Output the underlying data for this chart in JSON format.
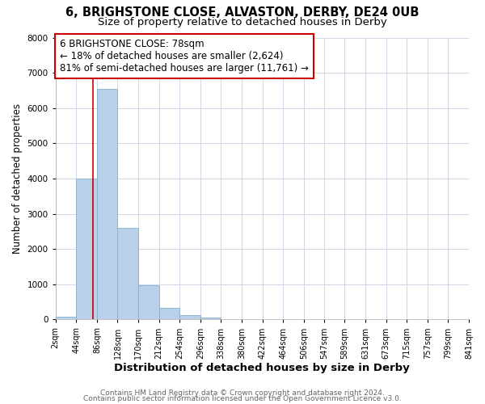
{
  "title_line1": "6, BRIGHSTONE CLOSE, ALVASTON, DERBY, DE24 0UB",
  "title_line2": "Size of property relative to detached houses in Derby",
  "xlabel": "Distribution of detached houses by size in Derby",
  "ylabel": "Number of detached properties",
  "bar_edges": [
    2,
    44,
    86,
    128,
    170,
    212,
    254,
    296,
    338,
    380,
    422,
    464,
    506,
    547,
    589,
    631,
    673,
    715,
    757,
    799,
    841
  ],
  "bar_heights": [
    75,
    4000,
    6550,
    2600,
    975,
    325,
    120,
    50,
    0,
    0,
    0,
    0,
    0,
    0,
    0,
    0,
    0,
    0,
    0,
    0
  ],
  "bar_color": "#b8d0e8",
  "bar_edgecolor": "#88aece",
  "property_line_x": 78,
  "property_line_color": "#cc0000",
  "annotation_text": "6 BRIGHSTONE CLOSE: 78sqm\n← 18% of detached houses are smaller (2,624)\n81% of semi-detached houses are larger (11,761) →",
  "ylim": [
    0,
    8000
  ],
  "tick_labels": [
    "2sqm",
    "44sqm",
    "86sqm",
    "128sqm",
    "170sqm",
    "212sqm",
    "254sqm",
    "296sqm",
    "338sqm",
    "380sqm",
    "422sqm",
    "464sqm",
    "506sqm",
    "547sqm",
    "589sqm",
    "631sqm",
    "673sqm",
    "715sqm",
    "757sqm",
    "799sqm",
    "841sqm"
  ],
  "footer_line1": "Contains HM Land Registry data © Crown copyright and database right 2024.",
  "footer_line2": "Contains public sector information licensed under the Open Government Licence v3.0.",
  "bg_color": "#ffffff",
  "grid_color": "#d0d8e8",
  "title_fontsize": 10.5,
  "subtitle_fontsize": 9.5,
  "xlabel_fontsize": 9.5,
  "ylabel_fontsize": 8.5,
  "tick_fontsize": 7,
  "annotation_fontsize": 8.5,
  "footer_fontsize": 6.5
}
